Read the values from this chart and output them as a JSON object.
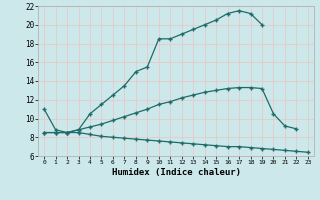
{
  "xlabel": "Humidex (Indice chaleur)",
  "bg_color": "#cce8ea",
  "grid_color": "#c0d8dc",
  "line_color": "#1e6b6a",
  "xlim_min": -0.5,
  "xlim_max": 23.5,
  "ylim_min": 6,
  "ylim_max": 22,
  "yticks": [
    6,
    8,
    10,
    12,
    14,
    16,
    18,
    20,
    22
  ],
  "xticks": [
    0,
    1,
    2,
    3,
    4,
    5,
    6,
    7,
    8,
    9,
    10,
    11,
    12,
    13,
    14,
    15,
    16,
    17,
    18,
    19,
    20,
    21,
    22,
    23
  ],
  "curve1_x": [
    0,
    1,
    2,
    3,
    4,
    5,
    6,
    7,
    8,
    9,
    10,
    11,
    12,
    13,
    14,
    15,
    16,
    17,
    18,
    19,
    20,
    21,
    22,
    23
  ],
  "curve1_y": [
    8.5,
    8.5,
    8.5,
    8.5,
    8.3,
    8.1,
    8.0,
    7.9,
    7.8,
    7.7,
    7.6,
    7.5,
    7.4,
    7.3,
    7.2,
    7.1,
    7.0,
    7.0,
    6.9,
    6.8,
    6.7,
    6.6,
    6.5,
    6.4
  ],
  "curve2_x": [
    0,
    1,
    2,
    3,
    4,
    5,
    6,
    7,
    8,
    9,
    10,
    11,
    12,
    13,
    14,
    15,
    16,
    17,
    18,
    19,
    20,
    21,
    22
  ],
  "curve2_y": [
    8.5,
    8.5,
    8.5,
    8.8,
    9.1,
    9.4,
    9.8,
    10.2,
    10.6,
    11.0,
    11.5,
    11.8,
    12.2,
    12.5,
    12.8,
    13.0,
    13.2,
    13.3,
    13.3,
    13.2,
    10.5,
    9.2,
    8.9
  ],
  "curve3_x": [
    0,
    1,
    2,
    3,
    4,
    5,
    6,
    7,
    8,
    9,
    10,
    11,
    12,
    13,
    14,
    15,
    16,
    17,
    18,
    19
  ],
  "curve3_y": [
    11.0,
    8.8,
    8.5,
    8.8,
    10.5,
    11.5,
    12.5,
    13.5,
    15.0,
    15.5,
    18.5,
    18.5,
    19.0,
    19.5,
    20.0,
    20.5,
    21.2,
    21.5,
    21.2,
    20.0
  ]
}
